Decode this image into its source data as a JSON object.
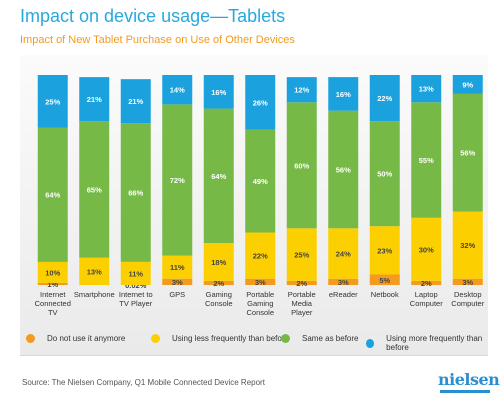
{
  "title": "Impact on device usage—Tablets",
  "subtitle": "Impact of New Tablet Purchase on Use of Other Devices",
  "source": "Source: The Nielsen Company, Q1 Mobile Connected Device Report",
  "logo": "nielsen",
  "colors": {
    "do_not_use": "#f39a1f",
    "less": "#fcd000",
    "same": "#76b947",
    "more": "#1aa1de",
    "label_text_light": "#ffffff",
    "label_text_dark": "#444444"
  },
  "chart_data": {
    "type": "bar",
    "stacked": true,
    "ylim": [
      0,
      100
    ],
    "grid": false,
    "legend_position": "bottom",
    "categories": [
      "Internet Connected TV",
      "Smartphone",
      "Internet to TV Player",
      "GPS",
      "Gaming Console",
      "Portable Gaming Console",
      "Portable Media Player",
      "eReader",
      "Netbook",
      "Laptop Computer",
      "Desktop Computer"
    ],
    "category_lines": [
      [
        "Internet",
        "Connected",
        "TV"
      ],
      [
        "Smartphone"
      ],
      [
        "Internet to",
        "TV Player"
      ],
      [
        "GPS"
      ],
      [
        "Gaming",
        "Console"
      ],
      [
        "Portable",
        "Gaming",
        "Console"
      ],
      [
        "Portable",
        "Media",
        "Player"
      ],
      [
        "eReader"
      ],
      [
        "Netbook"
      ],
      [
        "Laptop",
        "Computer"
      ],
      [
        "Desktop",
        "Computer"
      ]
    ],
    "series": [
      {
        "name": "Do not use it anymore",
        "key": "do_not_use",
        "values": [
          1,
          0,
          0.02,
          3,
          2,
          3,
          2,
          3,
          5,
          2,
          3
        ],
        "labels": [
          "1%",
          "",
          "0.02%",
          "3%",
          "2%",
          "3%",
          "2%",
          "3%",
          "5%",
          "2%",
          "3%"
        ]
      },
      {
        "name": "Using less frequently than before",
        "key": "less",
        "values": [
          10,
          13,
          11,
          11,
          18,
          22,
          25,
          24,
          23,
          30,
          32
        ],
        "labels": [
          "10%",
          "13%",
          "11%",
          "11%",
          "18%",
          "22%",
          "25%",
          "24%",
          "23%",
          "30%",
          "32%"
        ]
      },
      {
        "name": "Same as before",
        "key": "same",
        "values": [
          64,
          65,
          66,
          72,
          64,
          49,
          60,
          56,
          50,
          55,
          56
        ],
        "labels": [
          "64%",
          "65%",
          "66%",
          "72%",
          "64%",
          "49%",
          "60%",
          "56%",
          "50%",
          "55%",
          "56%"
        ]
      },
      {
        "name": "Using more frequently than before",
        "key": "more",
        "values": [
          25,
          21,
          21,
          14,
          16,
          26,
          12,
          16,
          22,
          13,
          9
        ],
        "labels": [
          "25%",
          "21%",
          "21%",
          "14%",
          "16%",
          "26%",
          "12%",
          "16%",
          "22%",
          "13%",
          "9%"
        ]
      }
    ]
  }
}
